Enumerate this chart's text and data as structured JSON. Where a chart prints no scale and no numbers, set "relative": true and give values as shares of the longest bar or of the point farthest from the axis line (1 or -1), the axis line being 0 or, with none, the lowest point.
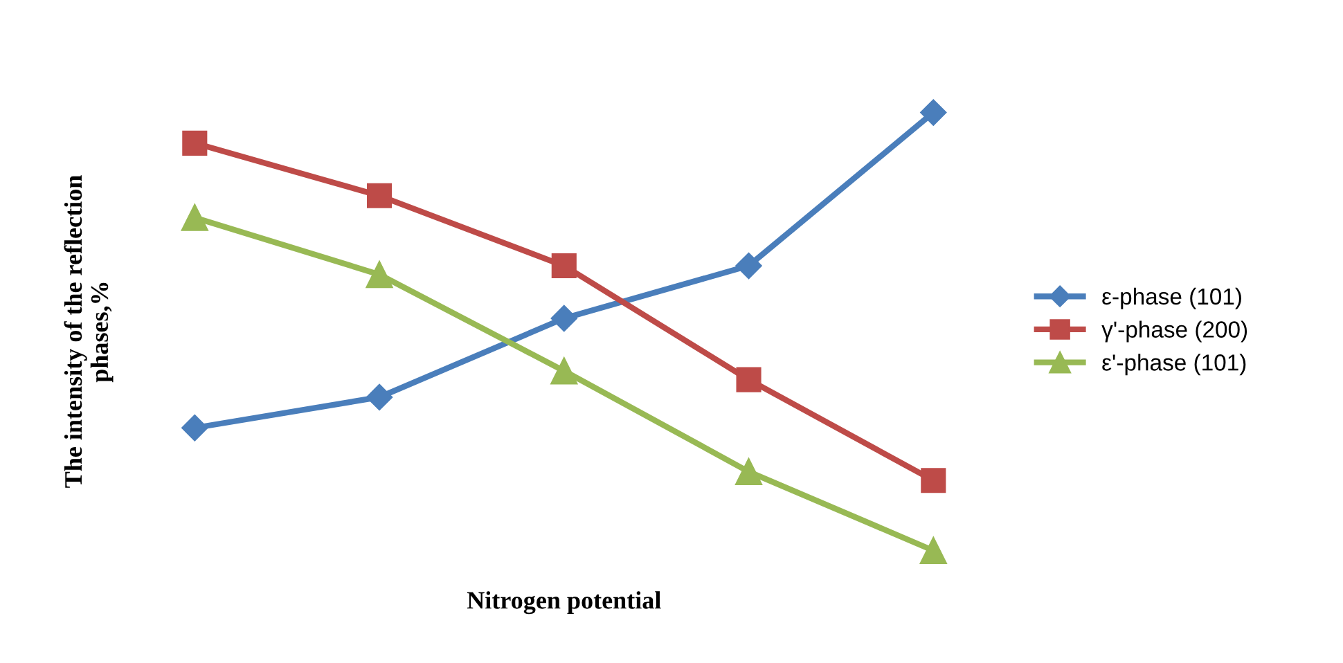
{
  "chart_data": {
    "type": "line",
    "relative": true,
    "xlabel": "Nitrogen potential",
    "ylabel": "The intensity of the reflection\nphases,%",
    "categories": [
      null,
      null,
      null,
      null,
      null
    ],
    "series": [
      {
        "name": "ε-phase (101)",
        "color": "#4a7ebb",
        "marker": "diamond",
        "values": [
          0.28,
          0.35,
          0.53,
          0.65,
          1.0
        ]
      },
      {
        "name": "γ'-phase (200)",
        "color": "#be4b48",
        "marker": "square",
        "values": [
          0.93,
          0.81,
          0.65,
          0.39,
          0.16
        ]
      },
      {
        "name": "ε'-phase (101)",
        "color": "#98b954",
        "marker": "triangle",
        "values": [
          0.76,
          0.63,
          0.41,
          0.18,
          0.0
        ]
      }
    ],
    "legend": "right",
    "grid": false,
    "line_style": "solid"
  }
}
